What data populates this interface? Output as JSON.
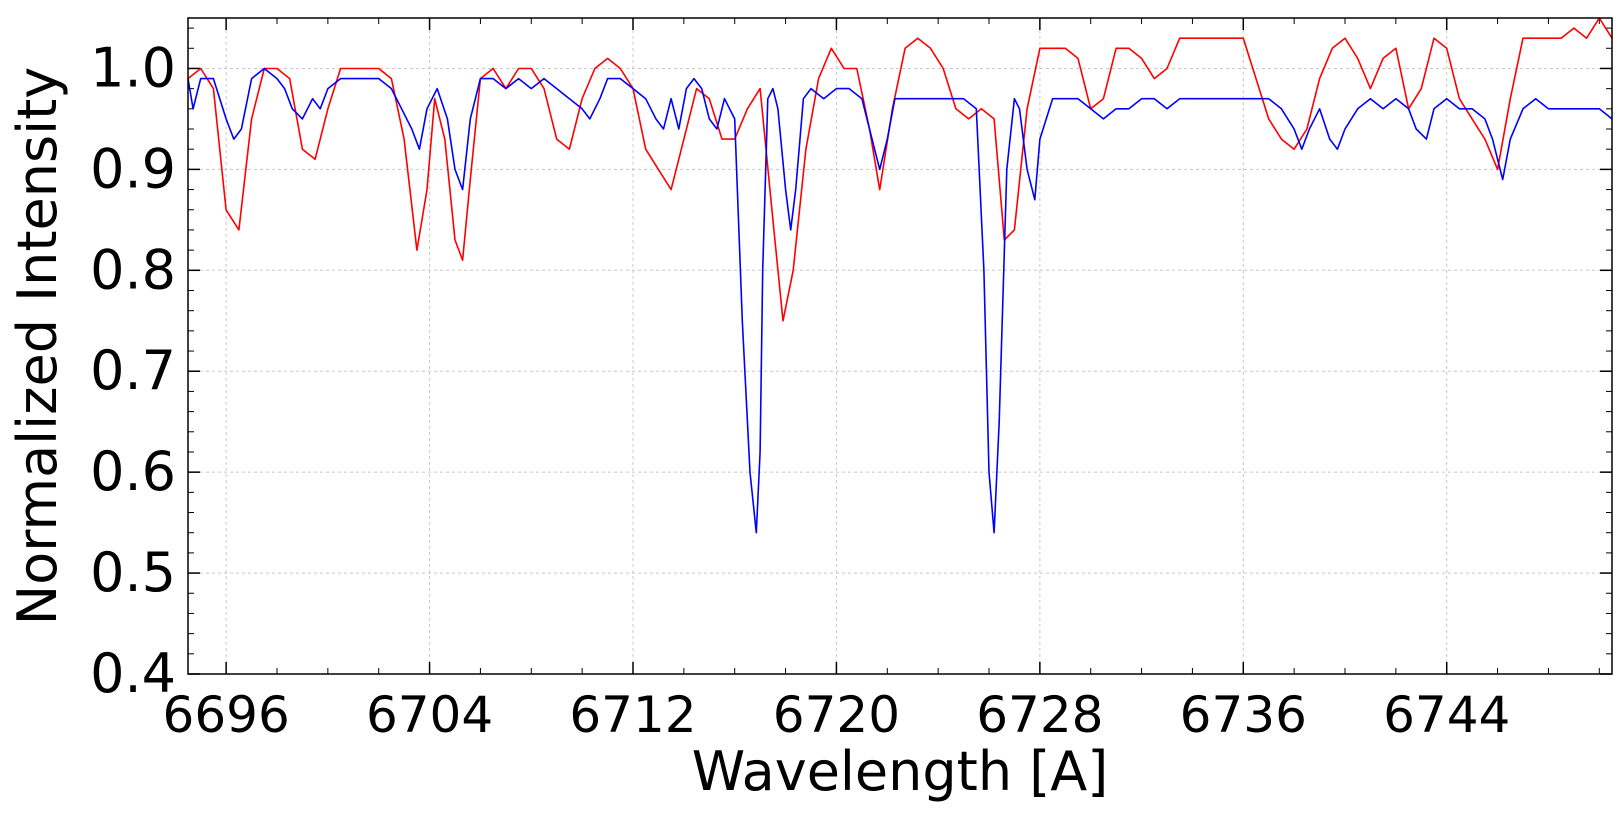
{
  "chart_data": {
    "type": "line",
    "xlabel": "Wavelength [A]",
    "ylabel": "Normalized Intensity",
    "xlim": [
      6694.5,
      6750.5
    ],
    "ylim": [
      0.4,
      1.05
    ],
    "x_ticks": [
      6696,
      6704,
      6712,
      6720,
      6728,
      6736,
      6744
    ],
    "x_tick_labels": [
      "6696",
      "6704",
      "6712",
      "6720",
      "6728",
      "6736",
      "6744"
    ],
    "y_ticks": [
      0.4,
      0.5,
      0.6,
      0.7,
      0.8,
      0.9,
      1.0
    ],
    "y_tick_labels": [
      "0.4",
      "0.5",
      "0.6",
      "0.7",
      "0.8",
      "0.9",
      "1.0"
    ],
    "grid": true,
    "series": [
      {
        "color": "#ff0000",
        "x": [
          6694.5,
          6695.0,
          6695.5,
          6696.0,
          6696.5,
          6697.0,
          6697.5,
          6698.0,
          6698.5,
          6699.0,
          6699.5,
          6700.0,
          6700.5,
          6701.0,
          6701.5,
          6702.0,
          6702.5,
          6703.0,
          6703.5,
          6703.9,
          6704.2,
          6704.6,
          6705.0,
          6705.3,
          6705.6,
          6706.0,
          6706.5,
          6707.0,
          6707.5,
          6708.0,
          6708.5,
          6709.0,
          6709.5,
          6710.0,
          6710.5,
          6711.0,
          6711.5,
          6712.0,
          6712.5,
          6713.0,
          6713.5,
          6714.0,
          6714.5,
          6715.0,
          6715.5,
          6716.0,
          6716.5,
          6717.0,
          6717.5,
          6717.9,
          6718.3,
          6718.8,
          6719.3,
          6719.8,
          6720.3,
          6720.8,
          6721.3,
          6721.7,
          6722.2,
          6722.7,
          6723.2,
          6723.7,
          6724.2,
          6724.7,
          6725.2,
          6725.7,
          6726.2,
          6726.6,
          6727.0,
          6727.5,
          6728.0,
          6728.5,
          6729.0,
          6729.5,
          6730.0,
          6730.5,
          6731.0,
          6731.5,
          6732.0,
          6732.5,
          6733.0,
          6733.5,
          6734.0,
          6734.5,
          6735.0,
          6735.5,
          6736.0,
          6736.5,
          6737.0,
          6737.5,
          6738.0,
          6738.5,
          6739.0,
          6739.5,
          6740.0,
          6740.5,
          6741.0,
          6741.5,
          6742.0,
          6742.5,
          6743.0,
          6743.5,
          6744.0,
          6744.5,
          6745.0,
          6745.5,
          6746.0,
          6746.5,
          6747.0,
          6747.5,
          6748.0,
          6748.5,
          6749.0,
          6749.5,
          6750.0,
          6750.5
        ],
        "values": [
          0.99,
          1.0,
          0.98,
          0.86,
          0.84,
          0.95,
          1.0,
          1.0,
          0.99,
          0.92,
          0.91,
          0.96,
          1.0,
          1.0,
          1.0,
          1.0,
          0.99,
          0.93,
          0.82,
          0.88,
          0.97,
          0.93,
          0.83,
          0.81,
          0.89,
          0.99,
          1.0,
          0.98,
          1.0,
          1.0,
          0.98,
          0.93,
          0.92,
          0.97,
          1.0,
          1.01,
          1.0,
          0.98,
          0.92,
          0.9,
          0.88,
          0.93,
          0.98,
          0.97,
          0.93,
          0.93,
          0.96,
          0.98,
          0.85,
          0.75,
          0.8,
          0.92,
          0.99,
          1.02,
          1.0,
          1.0,
          0.94,
          0.88,
          0.96,
          1.02,
          1.03,
          1.02,
          1.0,
          0.96,
          0.95,
          0.96,
          0.95,
          0.83,
          0.84,
          0.96,
          1.02,
          1.02,
          1.02,
          1.01,
          0.96,
          0.97,
          1.02,
          1.02,
          1.01,
          0.99,
          1.0,
          1.03,
          1.03,
          1.03,
          1.03,
          1.03,
          1.03,
          0.99,
          0.95,
          0.93,
          0.92,
          0.94,
          0.99,
          1.02,
          1.03,
          1.01,
          0.98,
          1.01,
          1.02,
          0.96,
          0.98,
          1.03,
          1.02,
          0.97,
          0.95,
          0.93,
          0.9,
          0.97,
          1.03,
          1.03,
          1.03,
          1.03,
          1.04,
          1.03,
          1.05,
          1.03
        ]
      },
      {
        "color": "#0000ff",
        "x": [
          6694.5,
          6694.7,
          6695.0,
          6695.5,
          6696.0,
          6696.3,
          6696.6,
          6697.0,
          6697.5,
          6698.0,
          6698.3,
          6698.6,
          6699.0,
          6699.4,
          6699.7,
          6700.0,
          6700.5,
          6701.0,
          6701.5,
          6702.0,
          6702.5,
          6702.9,
          6703.3,
          6703.6,
          6703.9,
          6704.3,
          6704.7,
          6705.0,
          6705.3,
          6705.6,
          6706.0,
          6706.5,
          6707.0,
          6707.5,
          6708.0,
          6708.5,
          6709.0,
          6709.5,
          6710.0,
          6710.3,
          6710.7,
          6711.0,
          6711.5,
          6712.0,
          6712.5,
          6712.9,
          6713.2,
          6713.5,
          6713.8,
          6714.1,
          6714.4,
          6714.7,
          6715.0,
          6715.3,
          6715.6,
          6716.0,
          6716.3,
          6716.6,
          6716.85,
          6717.0,
          6717.1,
          6717.3,
          6717.5,
          6717.7,
          6718.0,
          6718.2,
          6718.4,
          6718.7,
          6719.0,
          6719.5,
          6720.0,
          6720.5,
          6721.0,
          6721.3,
          6721.7,
          6722.0,
          6722.3,
          6722.7,
          6723.0,
          6723.5,
          6724.0,
          6724.5,
          6725.0,
          6725.5,
          6725.8,
          6726.0,
          6726.2,
          6726.4,
          6726.7,
          6727.0,
          6727.2,
          6727.5,
          6727.8,
          6728.0,
          6728.5,
          6729.0,
          6729.5,
          6730.0,
          6730.5,
          6731.0,
          6731.5,
          6732.0,
          6732.5,
          6733.0,
          6733.5,
          6734.0,
          6734.5,
          6735.0,
          6735.5,
          6736.0,
          6736.5,
          6737.0,
          6737.5,
          6738.0,
          6738.3,
          6738.6,
          6739.0,
          6739.4,
          6739.7,
          6740.0,
          6740.5,
          6741.0,
          6741.5,
          6742.0,
          6742.5,
          6742.8,
          6743.2,
          6743.5,
          6744.0,
          6744.5,
          6745.0,
          6745.5,
          6745.8,
          6746.2,
          6746.5,
          6747.0,
          6747.5,
          6748.0,
          6748.5,
          6749.0,
          6749.5,
          6750.0,
          6750.5
        ],
        "values": [
          0.99,
          0.96,
          0.99,
          0.99,
          0.95,
          0.93,
          0.94,
          0.99,
          1.0,
          0.99,
          0.98,
          0.96,
          0.95,
          0.97,
          0.96,
          0.98,
          0.99,
          0.99,
          0.99,
          0.99,
          0.98,
          0.96,
          0.94,
          0.92,
          0.96,
          0.98,
          0.95,
          0.9,
          0.88,
          0.95,
          0.99,
          0.99,
          0.98,
          0.99,
          0.98,
          0.99,
          0.98,
          0.97,
          0.96,
          0.95,
          0.97,
          0.99,
          0.99,
          0.98,
          0.97,
          0.95,
          0.94,
          0.97,
          0.94,
          0.98,
          0.99,
          0.98,
          0.95,
          0.94,
          0.97,
          0.95,
          0.75,
          0.6,
          0.54,
          0.62,
          0.8,
          0.97,
          0.98,
          0.96,
          0.88,
          0.84,
          0.88,
          0.97,
          0.98,
          0.97,
          0.98,
          0.98,
          0.97,
          0.94,
          0.9,
          0.93,
          0.97,
          0.97,
          0.97,
          0.97,
          0.97,
          0.97,
          0.97,
          0.96,
          0.8,
          0.6,
          0.54,
          0.65,
          0.9,
          0.97,
          0.96,
          0.9,
          0.87,
          0.93,
          0.97,
          0.97,
          0.97,
          0.96,
          0.95,
          0.96,
          0.96,
          0.97,
          0.97,
          0.96,
          0.97,
          0.97,
          0.97,
          0.97,
          0.97,
          0.97,
          0.97,
          0.97,
          0.96,
          0.94,
          0.92,
          0.94,
          0.96,
          0.93,
          0.92,
          0.94,
          0.96,
          0.97,
          0.96,
          0.97,
          0.96,
          0.94,
          0.93,
          0.96,
          0.97,
          0.96,
          0.96,
          0.95,
          0.93,
          0.89,
          0.93,
          0.96,
          0.97,
          0.96,
          0.96,
          0.96,
          0.96,
          0.96,
          0.95
        ]
      }
    ]
  }
}
